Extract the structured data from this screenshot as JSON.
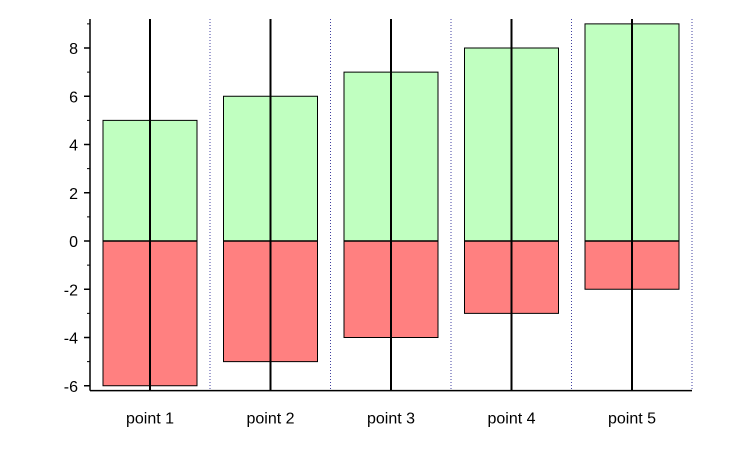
{
  "chart_data": {
    "type": "bar",
    "categories": [
      "point 1",
      "point 2",
      "point 3",
      "point 4",
      "point 5"
    ],
    "series": [
      {
        "values": [
          5,
          6,
          7,
          8,
          9
        ],
        "color": "#c0ffc0"
      },
      {
        "values": [
          -6,
          -5,
          -4,
          -3,
          -2
        ],
        "color": "#ff8080"
      }
    ],
    "ylim": [
      -6.2,
      9.2
    ],
    "yticks": [
      -6,
      -4,
      -2,
      0,
      2,
      4,
      6,
      8
    ],
    "grid": "vertical dotted category separators",
    "legend": "none"
  },
  "colors": {
    "positive": "#c0ffc0",
    "negative": "#ff8080",
    "separator": "#4040a0",
    "axis": "#000000"
  }
}
